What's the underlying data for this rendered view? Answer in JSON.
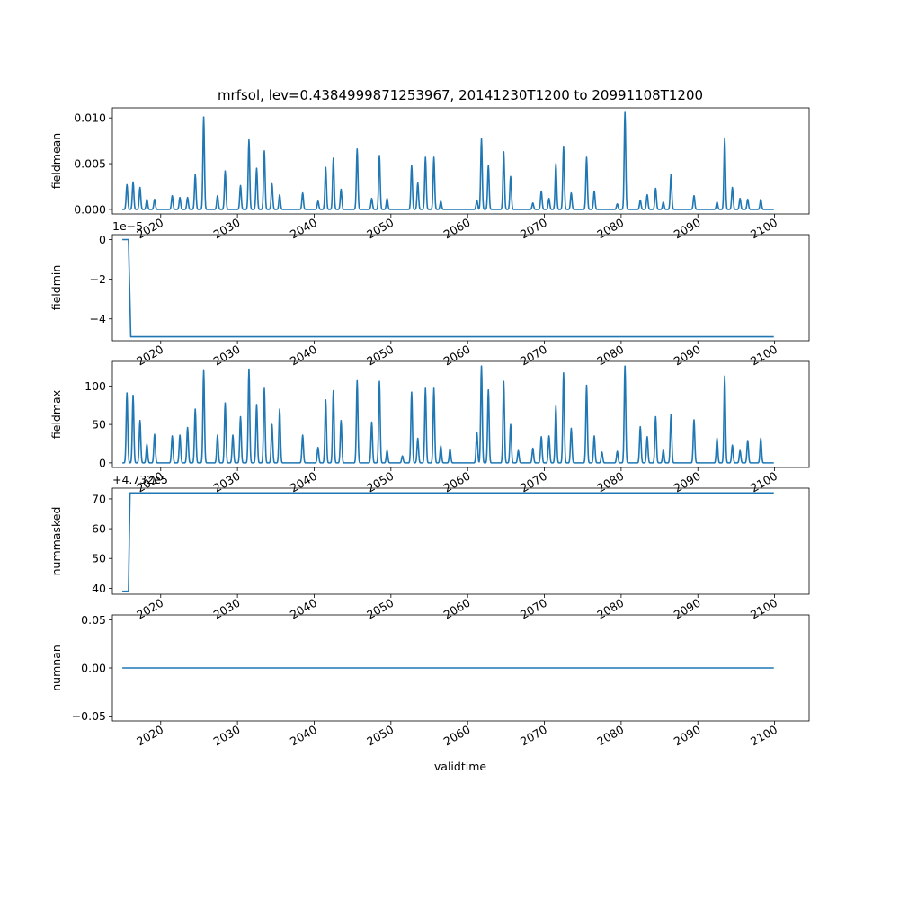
{
  "figure": {
    "title": "mrfsol, lev=0.4384999871253967, 20141230T1200 to 20991108T1200",
    "xlabel": "validtime",
    "line_color": "#1f77b4"
  },
  "chart_data": [
    {
      "type": "line",
      "ylabel": "fieldmean",
      "x_ticks": [
        "2020",
        "2030",
        "2040",
        "2050",
        "2060",
        "2070",
        "2080",
        "2090",
        "2100"
      ],
      "y_ticks": [
        "0.000",
        "0.005",
        "0.010"
      ],
      "xlim": [
        2013.7,
        2104.5
      ],
      "ylim": [
        -0.0005,
        0.0111
      ],
      "peaks": [
        [
          2015.6,
          0.0027
        ],
        [
          2016.4,
          0.003
        ],
        [
          2017.3,
          0.0024
        ],
        [
          2018.2,
          0.0011
        ],
        [
          2019.2,
          0.0011
        ],
        [
          2021.5,
          0.0015
        ],
        [
          2022.5,
          0.0013
        ],
        [
          2023.5,
          0.0013
        ],
        [
          2024.5,
          0.0038
        ],
        [
          2025.6,
          0.0101
        ],
        [
          2027.4,
          0.0015
        ],
        [
          2028.4,
          0.0042
        ],
        [
          2030.4,
          0.0026
        ],
        [
          2031.5,
          0.0076
        ],
        [
          2032.5,
          0.0045
        ],
        [
          2033.5,
          0.0064
        ],
        [
          2034.5,
          0.0028
        ],
        [
          2035.5,
          0.0016
        ],
        [
          2038.5,
          0.0018
        ],
        [
          2040.5,
          0.0009
        ],
        [
          2041.5,
          0.0046
        ],
        [
          2042.5,
          0.0056
        ],
        [
          2043.5,
          0.0022
        ],
        [
          2045.6,
          0.0066
        ],
        [
          2047.5,
          0.0012
        ],
        [
          2048.5,
          0.0059
        ],
        [
          2049.5,
          0.0012
        ],
        [
          2052.7,
          0.0048
        ],
        [
          2053.5,
          0.0029
        ],
        [
          2054.5,
          0.0057
        ],
        [
          2055.6,
          0.0057
        ],
        [
          2056.5,
          0.0009
        ],
        [
          2061.2,
          0.001
        ],
        [
          2061.8,
          0.0077
        ],
        [
          2062.7,
          0.0048
        ],
        [
          2064.7,
          0.0063
        ],
        [
          2065.6,
          0.0036
        ],
        [
          2068.5,
          0.0007
        ],
        [
          2069.6,
          0.002
        ],
        [
          2070.6,
          0.0012
        ],
        [
          2071.5,
          0.005
        ],
        [
          2072.5,
          0.0069
        ],
        [
          2073.5,
          0.0018
        ],
        [
          2075.5,
          0.0057
        ],
        [
          2076.5,
          0.002
        ],
        [
          2079.5,
          0.0006
        ],
        [
          2080.5,
          0.0106
        ],
        [
          2082.5,
          0.001
        ],
        [
          2083.4,
          0.0016
        ],
        [
          2084.5,
          0.0023
        ],
        [
          2085.5,
          0.0008
        ],
        [
          2086.5,
          0.0038
        ],
        [
          2089.5,
          0.0015
        ],
        [
          2092.5,
          0.0008
        ],
        [
          2093.5,
          0.0078
        ],
        [
          2094.5,
          0.0024
        ],
        [
          2095.5,
          0.0012
        ],
        [
          2096.5,
          0.0011
        ],
        [
          2098.2,
          0.0011
        ]
      ]
    },
    {
      "type": "line",
      "ylabel": "fieldmin",
      "offset_text": "1e−5",
      "x_ticks": [
        "2020",
        "2030",
        "2040",
        "2050",
        "2060",
        "2070",
        "2080",
        "2090",
        "2100"
      ],
      "y_ticks": [
        "0",
        "−2",
        "−4"
      ],
      "y_tick_values": [
        0,
        -2e-05,
        -4e-05
      ],
      "xlim": [
        2013.7,
        2104.5
      ],
      "ylim": [
        -5.1e-05,
        2.5e-06
      ],
      "steps": [
        [
          2015.0,
          0
        ],
        [
          2015.8,
          0
        ],
        [
          2016.1,
          -4.9e-05
        ],
        [
          2099.9,
          -4.9e-05
        ]
      ]
    },
    {
      "type": "line",
      "ylabel": "fieldmax",
      "x_ticks": [
        "2020",
        "2030",
        "2040",
        "2050",
        "2060",
        "2070",
        "2080",
        "2090",
        "2100"
      ],
      "y_ticks": [
        "0",
        "50",
        "100"
      ],
      "xlim": [
        2013.7,
        2104.5
      ],
      "ylim": [
        -6,
        132
      ],
      "peaks": [
        [
          2015.6,
          91
        ],
        [
          2016.4,
          88
        ],
        [
          2017.3,
          55
        ],
        [
          2018.2,
          24
        ],
        [
          2019.2,
          37
        ],
        [
          2021.5,
          35
        ],
        [
          2022.5,
          36
        ],
        [
          2023.5,
          46
        ],
        [
          2024.5,
          70
        ],
        [
          2025.6,
          120
        ],
        [
          2027.4,
          36
        ],
        [
          2028.4,
          78
        ],
        [
          2029.4,
          36
        ],
        [
          2030.4,
          60
        ],
        [
          2031.5,
          122
        ],
        [
          2032.5,
          76
        ],
        [
          2033.5,
          97
        ],
        [
          2034.5,
          50
        ],
        [
          2035.5,
          70
        ],
        [
          2038.5,
          36
        ],
        [
          2040.5,
          20
        ],
        [
          2041.5,
          82
        ],
        [
          2042.5,
          94
        ],
        [
          2043.5,
          55
        ],
        [
          2045.6,
          107
        ],
        [
          2047.5,
          53
        ],
        [
          2048.5,
          106
        ],
        [
          2049.5,
          16
        ],
        [
          2051.5,
          9
        ],
        [
          2052.7,
          92
        ],
        [
          2053.5,
          32
        ],
        [
          2054.5,
          97
        ],
        [
          2055.6,
          97
        ],
        [
          2056.5,
          22
        ],
        [
          2057.7,
          18
        ],
        [
          2061.2,
          40
        ],
        [
          2061.8,
          126
        ],
        [
          2062.7,
          95
        ],
        [
          2064.7,
          106
        ],
        [
          2065.6,
          50
        ],
        [
          2066.6,
          16
        ],
        [
          2068.5,
          19
        ],
        [
          2069.6,
          34
        ],
        [
          2070.6,
          35
        ],
        [
          2071.5,
          74
        ],
        [
          2072.5,
          117
        ],
        [
          2073.5,
          45
        ],
        [
          2075.5,
          101
        ],
        [
          2076.5,
          35
        ],
        [
          2077.5,
          14
        ],
        [
          2079.5,
          15
        ],
        [
          2080.5,
          126
        ],
        [
          2082.5,
          47
        ],
        [
          2083.4,
          34
        ],
        [
          2084.5,
          60
        ],
        [
          2085.5,
          17
        ],
        [
          2086.5,
          63
        ],
        [
          2089.5,
          56
        ],
        [
          2092.5,
          32
        ],
        [
          2093.5,
          113
        ],
        [
          2094.5,
          23
        ],
        [
          2095.5,
          16
        ],
        [
          2096.5,
          29
        ],
        [
          2098.2,
          32
        ]
      ]
    },
    {
      "type": "line",
      "ylabel": "nummasked",
      "offset_text": "+4.732e5",
      "x_ticks": [
        "2020",
        "2030",
        "2040",
        "2050",
        "2060",
        "2070",
        "2080",
        "2090",
        "2100"
      ],
      "y_ticks": [
        "40",
        "50",
        "60",
        "70"
      ],
      "y_tick_values": [
        40,
        50,
        60,
        70
      ],
      "xlim": [
        2013.7,
        2104.5
      ],
      "ylim": [
        38,
        73.6
      ],
      "steps": [
        [
          2015.0,
          39
        ],
        [
          2015.8,
          39
        ],
        [
          2016.0,
          72
        ],
        [
          2099.9,
          72
        ]
      ]
    },
    {
      "type": "line",
      "ylabel": "numnan",
      "x_ticks": [
        "2020",
        "2030",
        "2040",
        "2050",
        "2060",
        "2070",
        "2080",
        "2090",
        "2100"
      ],
      "y_ticks": [
        "0.05",
        "0.00",
        "−0.05"
      ],
      "y_tick_values": [
        0.05,
        0,
        -0.05
      ],
      "xlim": [
        2013.7,
        2104.5
      ],
      "ylim": [
        -0.055,
        0.055
      ],
      "steps": [
        [
          2015.0,
          0
        ],
        [
          2099.9,
          0
        ]
      ]
    }
  ]
}
